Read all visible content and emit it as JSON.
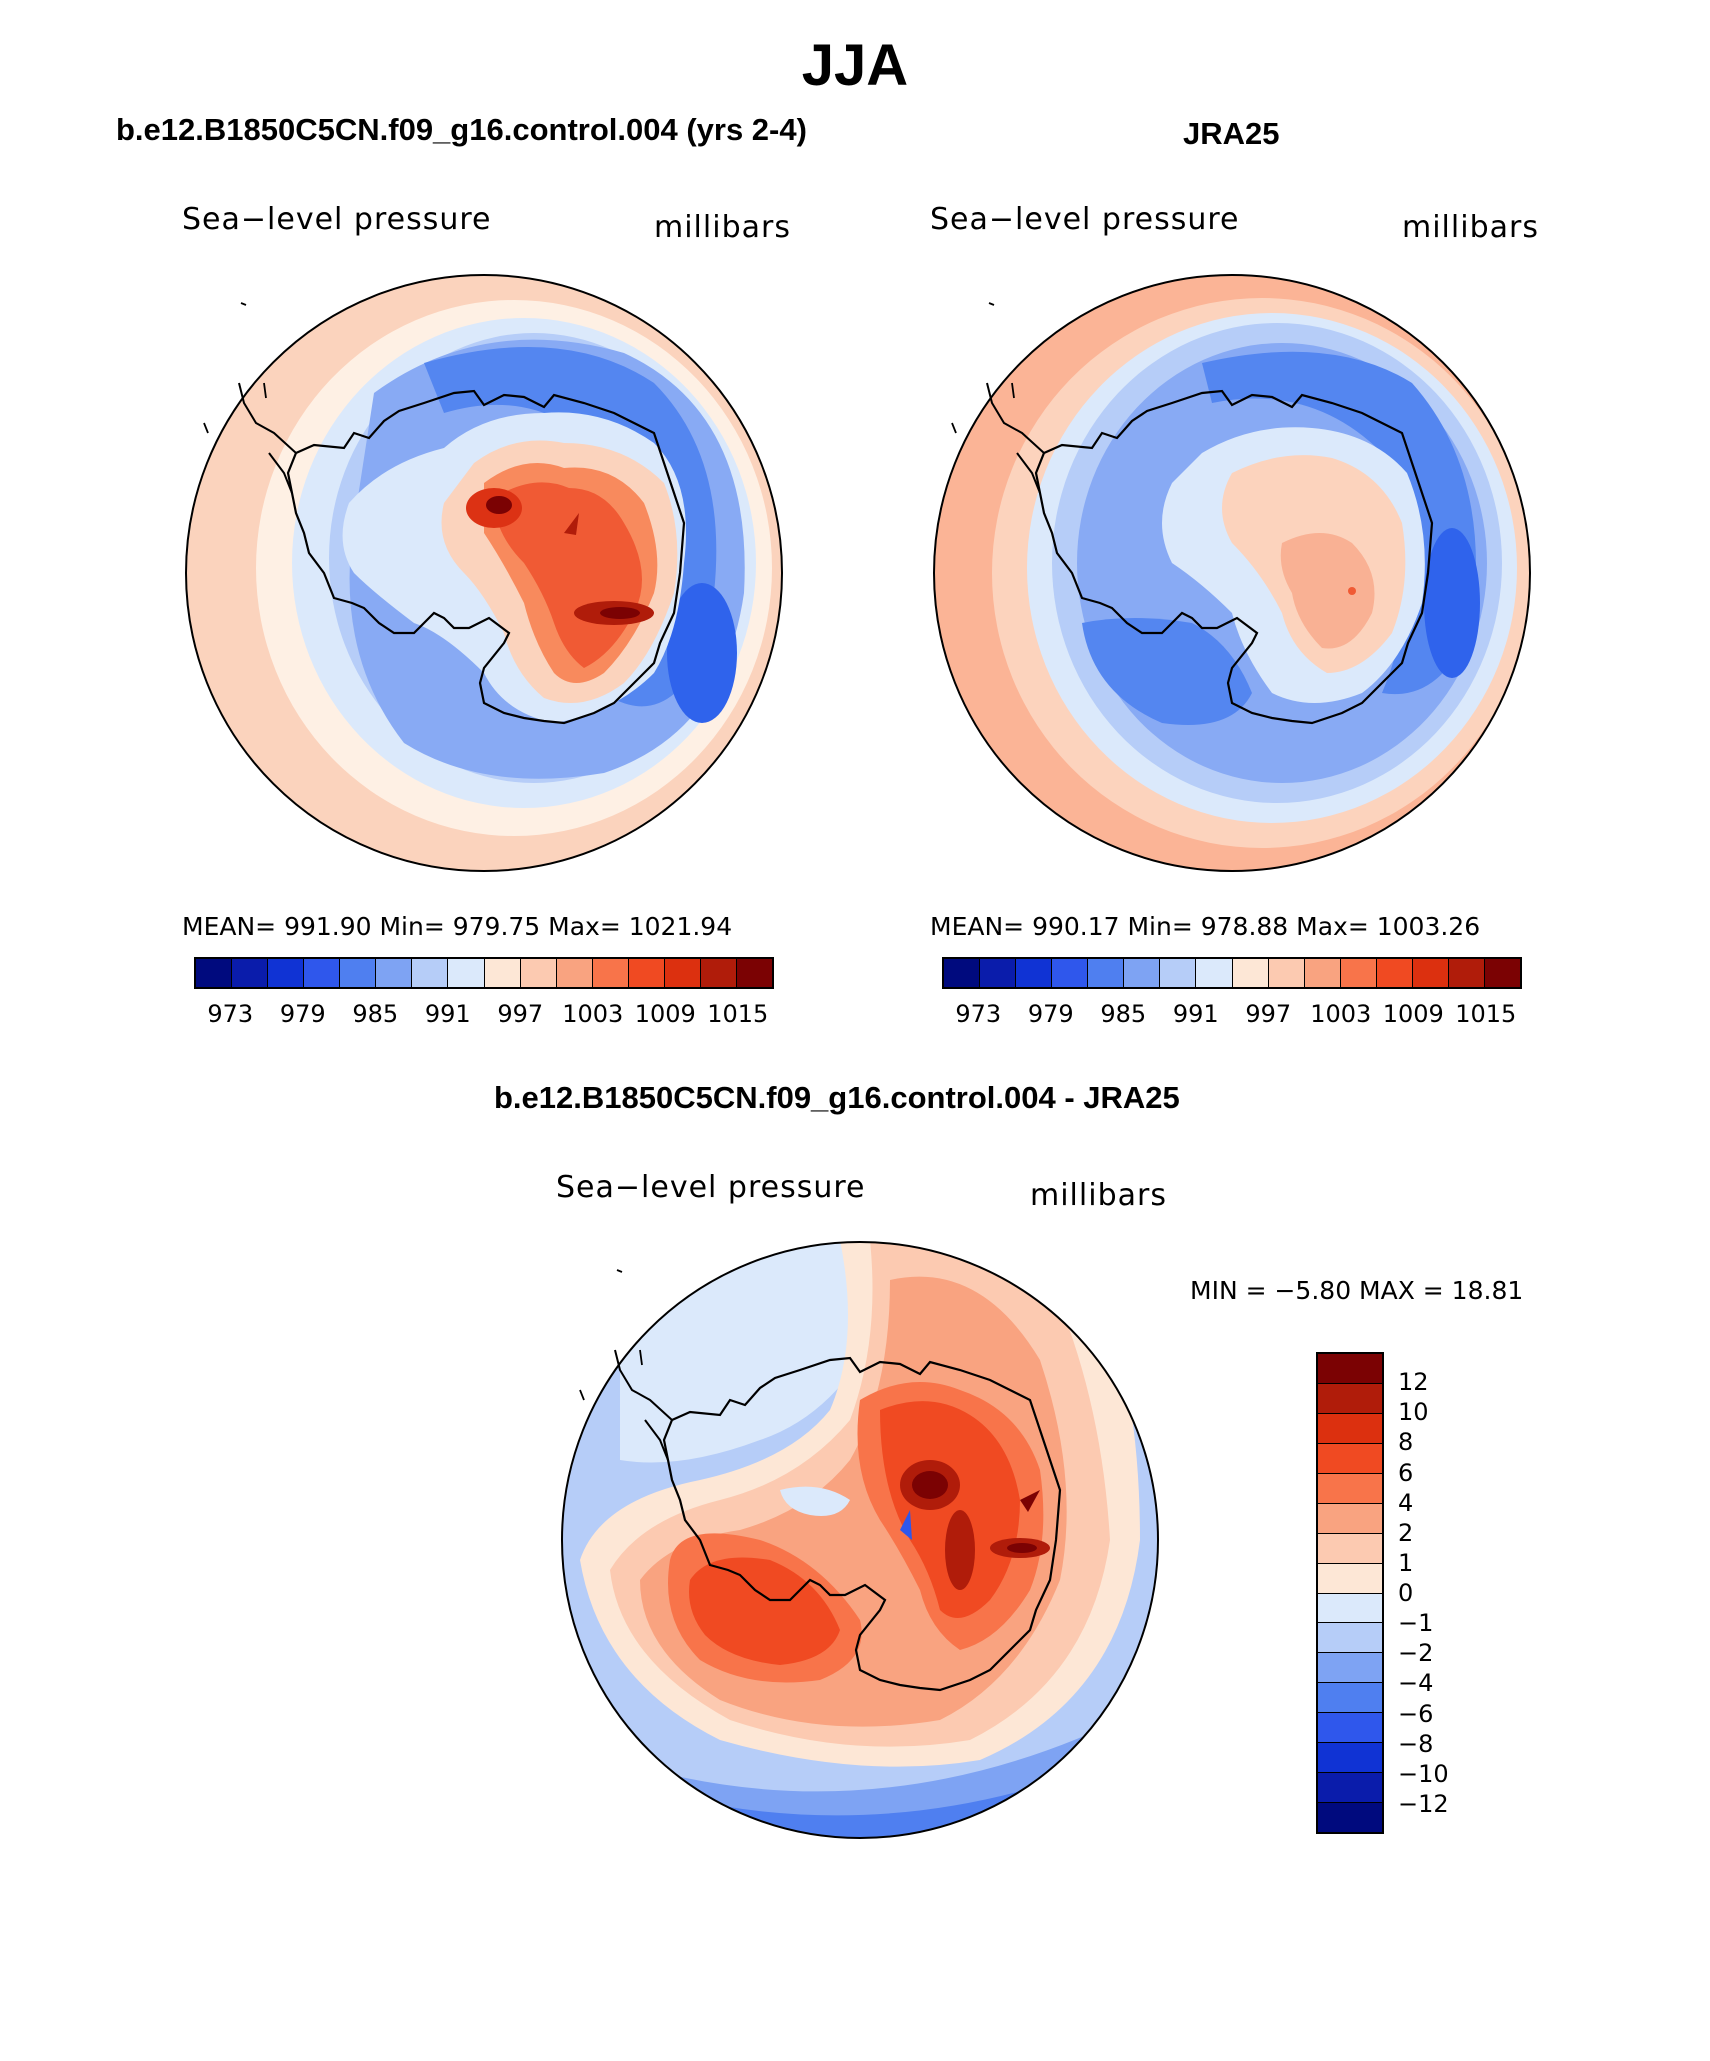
{
  "figure": {
    "title": "JJA",
    "panels": [
      {
        "title": "b.e12.B1850C5CN.f09_g16.control.004 (yrs 2-4)",
        "variable": "Sea−level pressure",
        "units": "millibars",
        "stats": "MEAN=  991.90   Min=  979.75   Max=  1021.94",
        "colorbar_ticks": [
          "973",
          "979",
          "985",
          "991",
          "997",
          "1003",
          "1009",
          "1015"
        ],
        "colors": {
          "outer": "#fbd3bd",
          "ring2": "#fef0e4",
          "ring3": "#dbe9fb",
          "ring4": "#b6cdf8",
          "ring5": "#88aaf4",
          "low": "#5486f0",
          "low2": "#2f63ec",
          "continent": "#fbd3bd",
          "land_inner": "#dbe9fb",
          "high1": "#f88a5d",
          "high2": "#f05a34",
          "high3": "#dc3214",
          "high4": "#b01c0a",
          "peak": "#7b0203"
        }
      },
      {
        "title": "JRA25",
        "variable": "Sea−level pressure",
        "units": "millibars",
        "stats": "MEAN=  990.17   Min=  978.88   Max=  1003.26",
        "colorbar_ticks": [
          "973",
          "979",
          "985",
          "991",
          "997",
          "1003",
          "1009",
          "1015"
        ],
        "colors": {
          "outer": "#fbb496",
          "ring2": "#fcd3bd",
          "ring3": "#dbe9fb",
          "ring4": "#b6cdf8",
          "ring5": "#88aaf4",
          "low": "#5486f0",
          "low2": "#2f63ec",
          "continent": "#dbe9fb",
          "land_inner": "#b6cdf8",
          "high1": "#fcd3bd",
          "high2": "#f9b194",
          "high3": "#f88a5d",
          "high4": "#f88a5d",
          "peak": "#f05a34"
        }
      }
    ],
    "difference": {
      "title": "b.e12.B1850C5CN.f09_g16.control.004 - JRA25",
      "variable": "Sea−level pressure",
      "units": "millibars",
      "minmax": "MIN =   −5.80  MAX =    18.81",
      "colorbar_ticks": [
        "12",
        "10",
        "8",
        "6",
        "4",
        "2",
        "1",
        "0",
        "−1",
        "−2",
        "−4",
        "−6",
        "−8",
        "−10",
        "−12"
      ]
    },
    "seq_colors": [
      "#000a7e",
      "#0a1cab",
      "#1033d4",
      "#2f57ec",
      "#4f7ff0",
      "#7ea3f3",
      "#b6cdf8",
      "#dbe9fb",
      "#fde7d6",
      "#fccab1",
      "#f9a380",
      "#f8744a",
      "#f04a22",
      "#dc300f",
      "#b01c0a",
      "#7b0203"
    ],
    "diff_colors": [
      "#7b0203",
      "#b01c0a",
      "#dc300f",
      "#f04a22",
      "#f8744a",
      "#f9a380",
      "#fccab1",
      "#fde7d6",
      "#dbe9fb",
      "#b6cdf8",
      "#7ea3f3",
      "#4f7ff0",
      "#2f57ec",
      "#1033d4",
      "#0a1cab",
      "#000a7e"
    ]
  }
}
